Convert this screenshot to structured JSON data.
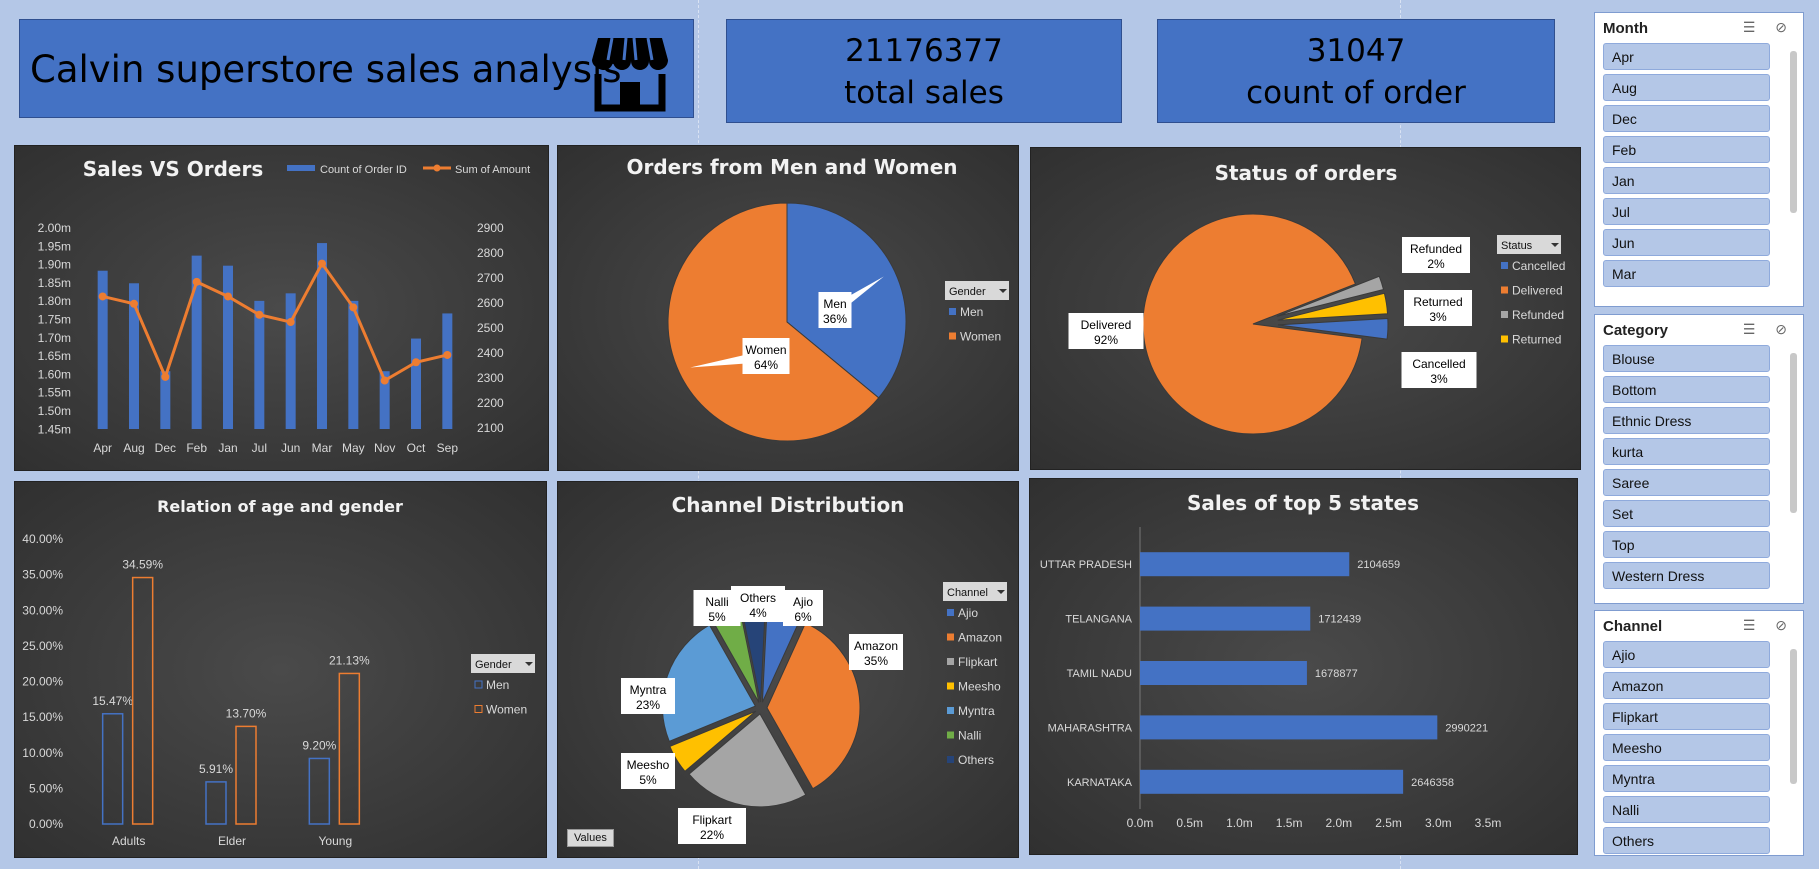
{
  "header": {
    "title": "Calvin superstore sales analysis",
    "kpi_sales_value": "21176377",
    "kpi_sales_label": "total sales",
    "kpi_orders_value": "31047",
    "kpi_orders_label": "count of order",
    "store_icon": "storefront-icon"
  },
  "colors": {
    "blue": "#4472c4",
    "orange": "#ed7d31",
    "gray": "#a5a5a5",
    "yellow": "#ffc000",
    "lightblue": "#5b9bd5",
    "green": "#70ad47",
    "navy": "#264478"
  },
  "chart_data": [
    {
      "id": "sales_vs_orders",
      "type": "bar",
      "title": "Sales VS Orders",
      "categories": [
        "Apr",
        "Aug",
        "Dec",
        "Feb",
        "Jan",
        "Jul",
        "Jun",
        "Mar",
        "May",
        "Nov",
        "Oct",
        "Sep"
      ],
      "series": [
        {
          "name": "Count of Order ID",
          "type": "bar",
          "axis": "right",
          "values": [
            2730,
            2680,
            2330,
            2790,
            2750,
            2610,
            2640,
            2840,
            2610,
            2330,
            2460,
            2560
          ]
        },
        {
          "name": "Sum of Amount",
          "type": "line",
          "axis": "left",
          "values": [
            1.84,
            1.82,
            1.62,
            1.88,
            1.84,
            1.79,
            1.77,
            1.93,
            1.81,
            1.61,
            1.66,
            1.68
          ]
        }
      ],
      "ylim_left": [
        1.45,
        2.0
      ],
      "yticks_left": [
        "2.00m",
        "1.95m",
        "1.90m",
        "1.85m",
        "1.80m",
        "1.75m",
        "1.70m",
        "1.65m",
        "1.60m",
        "1.55m",
        "1.50m",
        "1.45m"
      ],
      "ylim_right": [
        2100,
        2900
      ],
      "yticks_right": [
        "2900",
        "2800",
        "2700",
        "2600",
        "2500",
        "2400",
        "2300",
        "2200",
        "2100"
      ],
      "legend": "top"
    },
    {
      "id": "gender_orders",
      "type": "pie",
      "title": "Orders from Men and Women",
      "legend_title": "Gender",
      "slices": [
        {
          "name": "Men",
          "value": 36,
          "label": "36%"
        },
        {
          "name": "Women",
          "value": 64,
          "label": "64%"
        }
      ],
      "legend": "right"
    },
    {
      "id": "order_status",
      "type": "pie",
      "title": "Status of orders",
      "legend_title": "Status",
      "slices": [
        {
          "name": "Delivered",
          "value": 92,
          "label": "92%"
        },
        {
          "name": "Refunded",
          "value": 2,
          "label": "2%"
        },
        {
          "name": "Returned",
          "value": 3,
          "label": "3%"
        },
        {
          "name": "Cancelled",
          "value": 3,
          "label": "3%"
        }
      ],
      "legend_order": [
        "Cancelled",
        "Delivered",
        "Refunded",
        "Returned"
      ],
      "legend": "right"
    },
    {
      "id": "age_gender",
      "type": "bar",
      "title": "Relation of age and gender",
      "legend_title": "Gender",
      "categories": [
        "Adults",
        "Elder",
        "Young"
      ],
      "series": [
        {
          "name": "Men",
          "values": [
            15.47,
            5.91,
            9.2
          ],
          "labels": [
            "15.47%",
            "5.91%",
            "9.20%"
          ]
        },
        {
          "name": "Women",
          "values": [
            34.59,
            13.7,
            21.13
          ],
          "labels": [
            "34.59%",
            "13.70%",
            "21.13%"
          ]
        }
      ],
      "ylim": [
        0,
        40
      ],
      "yticks": [
        "40.00%",
        "35.00%",
        "30.00%",
        "25.00%",
        "20.00%",
        "15.00%",
        "10.00%",
        "5.00%",
        "0.00%"
      ],
      "legend": "right"
    },
    {
      "id": "channel_dist",
      "type": "pie",
      "title": "Channel Distribution",
      "legend_title": "Channel",
      "values_button": "Values",
      "slices": [
        {
          "name": "Ajio",
          "value": 6,
          "label": "6%"
        },
        {
          "name": "Amazon",
          "value": 35,
          "label": "35%"
        },
        {
          "name": "Flipkart",
          "value": 22,
          "label": "22%"
        },
        {
          "name": "Meesho",
          "value": 5,
          "label": "5%"
        },
        {
          "name": "Myntra",
          "value": 23,
          "label": "23%"
        },
        {
          "name": "Nalli",
          "value": 5,
          "label": "5%"
        },
        {
          "name": "Others",
          "value": 4,
          "label": "4%"
        }
      ],
      "legend": "right"
    },
    {
      "id": "top_states",
      "type": "bar",
      "orientation": "horizontal",
      "title": "Sales of top 5 states",
      "categories": [
        "UTTAR PRADESH",
        "TELANGANA",
        "TAMIL NADU",
        "MAHARASHTRA",
        "KARNATAKA"
      ],
      "values": [
        2104659,
        1712439,
        1678877,
        2990221,
        2646358
      ],
      "xlim": [
        0,
        3500000
      ],
      "xticks": [
        "0.0m",
        "0.5m",
        "1.0m",
        "1.5m",
        "2.0m",
        "2.5m",
        "3.0m",
        "3.5m"
      ]
    }
  ],
  "slicers": [
    {
      "title": "Month",
      "items": [
        "Apr",
        "Aug",
        "Dec",
        "Feb",
        "Jan",
        "Jul",
        "Jun",
        "Mar"
      ]
    },
    {
      "title": "Category",
      "items": [
        "Blouse",
        "Bottom",
        "Ethnic Dress",
        "kurta",
        "Saree",
        "Set",
        "Top",
        "Western Dress"
      ]
    },
    {
      "title": "Channel",
      "items": [
        "Ajio",
        "Amazon",
        "Flipkart",
        "Meesho",
        "Myntra",
        "Nalli",
        "Others"
      ]
    }
  ]
}
